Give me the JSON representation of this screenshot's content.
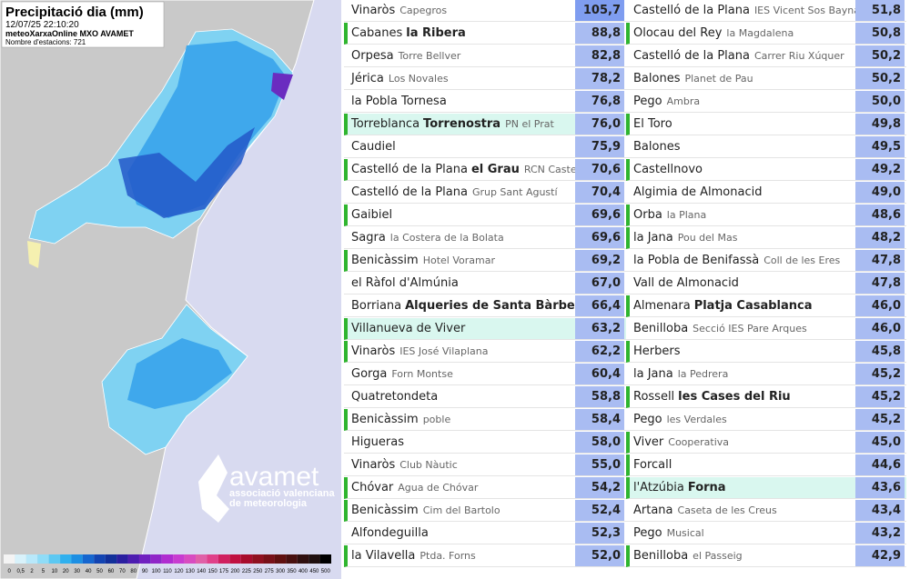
{
  "map": {
    "title": "Precipitació dia (mm)",
    "datetime": "12/07/25 22:10:20",
    "source": "meteoXarxaOnline MXO AVAMET",
    "stations": "Nombre d'estacions: 721",
    "logo": "avamet",
    "logo_subtitle": "associació valenciana de meteorologia",
    "legend": [
      "0",
      "0,5",
      "2",
      "5",
      "10",
      "20",
      "30",
      "40",
      "50",
      "60",
      "70",
      "80",
      "90",
      "100",
      "110",
      "120",
      "130",
      "140",
      "150",
      "175",
      "200",
      "225",
      "250",
      "275",
      "300",
      "350",
      "400",
      "450",
      "500"
    ]
  },
  "table": {
    "columns": [
      [
        {
          "town": "Vinaròs",
          "station": "Capegros",
          "value": "105,7"
        },
        {
          "town": "Cabanes",
          "district": "la Ribera",
          "value": "88,8"
        },
        {
          "town": "Orpesa",
          "station": "Torre Bellver",
          "value": "82,8"
        },
        {
          "town": "Jérica",
          "station": "Los Novales",
          "value": "78,2"
        },
        {
          "town": "la Pobla Tornesa",
          "value": "76,8"
        },
        {
          "town": "Torreblanca",
          "district": "Torrenostra",
          "station": "PN el Prat",
          "value": "76,0"
        },
        {
          "town": "Caudiel",
          "value": "75,9"
        },
        {
          "town": "Castelló de la Plana",
          "district": "el Grau",
          "station": "RCN Castelló",
          "value": "70,6"
        },
        {
          "town": "Castelló de la Plana",
          "station": "Grup Sant Agustí",
          "value": "70,4"
        },
        {
          "town": "Gaibiel",
          "value": "69,6"
        },
        {
          "town": "Sagra",
          "station": "la Costera de la Bolata",
          "value": "69,6"
        },
        {
          "town": "Benicàssim",
          "station": "Hotel Voramar",
          "value": "69,2"
        },
        {
          "town": "el Ràfol d'Almúnia",
          "value": "67,0"
        },
        {
          "town": "Borriana",
          "district": "Alqueries de Santa Bàrbera",
          "value": "66,4"
        },
        {
          "town": "Villanueva de Viver",
          "value": "63,2"
        },
        {
          "town": "Vinaròs",
          "station": "IES José Vilaplana",
          "value": "62,2"
        },
        {
          "town": "Gorga",
          "station": "Forn Montse",
          "value": "60,4"
        },
        {
          "town": "Quatretondeta",
          "value": "58,8"
        },
        {
          "town": "Benicàssim",
          "station": "poble",
          "value": "58,4"
        },
        {
          "town": "Higueras",
          "value": "58,0"
        },
        {
          "town": "Vinaròs",
          "station": "Club Nàutic",
          "value": "55,0"
        },
        {
          "town": "Chóvar",
          "station": "Agua de Chóvar",
          "value": "54,2"
        },
        {
          "town": "Benicàssim",
          "station": "Cim del Bartolo",
          "value": "52,4"
        },
        {
          "town": "Alfondeguilla",
          "value": "52,3"
        },
        {
          "town": "la Vilavella",
          "station": "Ptda. Forns",
          "value": "52,0"
        }
      ],
      [
        {
          "town": "Castelló de la Plana",
          "station": "IES Vicent Sos Baynat",
          "value": "51,8"
        },
        {
          "town": "Olocau del Rey",
          "station": "la Magdalena",
          "value": "50,8"
        },
        {
          "town": "Castelló de la Plana",
          "station": "Carrer Riu Xúquer",
          "value": "50,2"
        },
        {
          "town": "Balones",
          "station": "Planet de Pau",
          "value": "50,2"
        },
        {
          "town": "Pego",
          "station": "Ambra",
          "value": "50,0"
        },
        {
          "town": "El Toro",
          "value": "49,8"
        },
        {
          "town": "Balones",
          "value": "49,5"
        },
        {
          "town": "Castellnovo",
          "value": "49,2"
        },
        {
          "town": "Algimia de Almonacid",
          "value": "49,0"
        },
        {
          "town": "Orba",
          "station": "la Plana",
          "value": "48,6"
        },
        {
          "town": "la Jana",
          "station": "Pou del Mas",
          "value": "48,2"
        },
        {
          "town": "la Pobla de Benifassà",
          "station": "Coll de les Eres",
          "value": "47,8"
        },
        {
          "town": "Vall de Almonacid",
          "value": "47,8"
        },
        {
          "town": "Almenara",
          "district": "Platja Casablanca",
          "value": "46,0"
        },
        {
          "town": "Benilloba",
          "station": "Secció IES Pare Arques",
          "value": "46,0"
        },
        {
          "town": "Herbers",
          "value": "45,8"
        },
        {
          "town": "la Jana",
          "station": "la Pedrera",
          "value": "45,2"
        },
        {
          "town": "Rossell",
          "district": "les Cases del Riu",
          "value": "45,2"
        },
        {
          "town": "Pego",
          "station": "les Verdales",
          "value": "45,2"
        },
        {
          "town": "Viver",
          "station": "Cooperativa",
          "value": "45,0"
        },
        {
          "town": "Forcall",
          "value": "44,6"
        },
        {
          "town": "l'Atzúbia",
          "district": "Forna",
          "value": "43,6"
        },
        {
          "town": "Artana",
          "station": "Caseta de les Creus",
          "value": "43,4"
        },
        {
          "town": "Pego",
          "station": "Musical",
          "value": "43,2"
        },
        {
          "town": "Benilloba",
          "station": "el Passeig",
          "value": "42,9"
        }
      ]
    ]
  }
}
